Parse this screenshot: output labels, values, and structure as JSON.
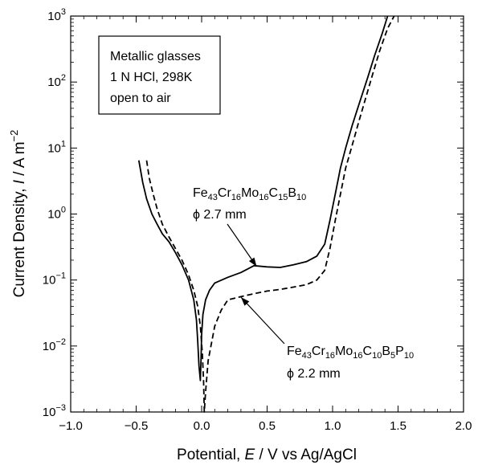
{
  "chart_data": {
    "type": "line",
    "xlabel": {
      "prefix": "Potential, ",
      "var": "E",
      "suffix": " / V vs Ag/AgCl"
    },
    "ylabel": {
      "prefix": "Current Density, ",
      "var": "I",
      "unit": " / A m",
      "exp": "−2"
    },
    "xlim": [
      -1.0,
      2.0
    ],
    "ylim_log10": [
      -3,
      3
    ],
    "y_scale": "log",
    "x_ticks": [
      {
        "value": -1.0,
        "label": "−1.0"
      },
      {
        "value": -0.5,
        "label": "−0.5"
      },
      {
        "value": 0.0,
        "label": "0.0"
      },
      {
        "value": 0.5,
        "label": "0.5"
      },
      {
        "value": 1.0,
        "label": "1.0"
      },
      {
        "value": 1.5,
        "label": "1.5"
      },
      {
        "value": 2.0,
        "label": "2.0"
      }
    ],
    "y_ticks": [
      {
        "exp": -3,
        "base": "10",
        "sup": "−3"
      },
      {
        "exp": -2,
        "base": "10",
        "sup": "−2"
      },
      {
        "exp": -1,
        "base": "10",
        "sup": "−1"
      },
      {
        "exp": 0,
        "base": "10",
        "sup": "0"
      },
      {
        "exp": 1,
        "base": "10",
        "sup": "1"
      },
      {
        "exp": 2,
        "base": "10",
        "sup": "2"
      },
      {
        "exp": 3,
        "base": "10",
        "sup": "3"
      }
    ],
    "legend_box": {
      "lines": [
        "Metallic glasses",
        "1 N HCl, 298K",
        "open to air"
      ]
    },
    "annotations": [
      {
        "id": "solid",
        "composition": [
          {
            "t": "Fe",
            "s": "43"
          },
          {
            "t": "Cr",
            "s": "16"
          },
          {
            "t": "Mo",
            "s": "16"
          },
          {
            "t": "C",
            "s": "15"
          },
          {
            "t": "B",
            "s": "10"
          }
        ],
        "size": "ϕ 2.7 mm",
        "arrow_to": {
          "x": 0.42,
          "y": 0.16
        }
      },
      {
        "id": "dashed",
        "composition": [
          {
            "t": "Fe",
            "s": "43"
          },
          {
            "t": "Cr",
            "s": "16"
          },
          {
            "t": "Mo",
            "s": "16"
          },
          {
            "t": "C",
            "s": "10"
          },
          {
            "t": "B",
            "s": "5"
          },
          {
            "t": "P",
            "s": "10"
          }
        ],
        "size": "ϕ 2.2 mm",
        "arrow_to": {
          "x": 0.3,
          "y": 0.055
        }
      }
    ],
    "series": [
      {
        "id": "solid",
        "style": "solid",
        "points": [
          [
            -0.48,
            6.5
          ],
          [
            -0.45,
            3.0
          ],
          [
            -0.42,
            1.7
          ],
          [
            -0.38,
            1.0
          ],
          [
            -0.34,
            0.7
          ],
          [
            -0.3,
            0.5
          ],
          [
            -0.25,
            0.38
          ],
          [
            -0.2,
            0.26
          ],
          [
            -0.15,
            0.17
          ],
          [
            -0.1,
            0.1
          ],
          [
            -0.06,
            0.05
          ],
          [
            -0.04,
            0.025
          ],
          [
            -0.03,
            0.012
          ],
          [
            -0.02,
            0.005
          ],
          [
            -0.01,
            0.003
          ],
          [
            -0.005,
            0.006
          ],
          [
            0.0,
            0.015
          ],
          [
            0.01,
            0.03
          ],
          [
            0.03,
            0.05
          ],
          [
            0.06,
            0.07
          ],
          [
            0.1,
            0.09
          ],
          [
            0.2,
            0.11
          ],
          [
            0.3,
            0.13
          ],
          [
            0.4,
            0.165
          ],
          [
            0.5,
            0.158
          ],
          [
            0.6,
            0.155
          ],
          [
            0.7,
            0.17
          ],
          [
            0.8,
            0.19
          ],
          [
            0.88,
            0.23
          ],
          [
            0.94,
            0.35
          ],
          [
            0.98,
            0.8
          ],
          [
            1.02,
            2.0
          ],
          [
            1.06,
            5.0
          ],
          [
            1.1,
            10.0
          ],
          [
            1.15,
            22.0
          ],
          [
            1.2,
            45.0
          ],
          [
            1.27,
            120.0
          ],
          [
            1.32,
            250.0
          ],
          [
            1.38,
            550.0
          ],
          [
            1.42,
            1000.0
          ]
        ]
      },
      {
        "id": "dashed",
        "style": "dashed",
        "points": [
          [
            -0.42,
            6.5
          ],
          [
            -0.4,
            3.5
          ],
          [
            -0.37,
            2.0
          ],
          [
            -0.34,
            1.2
          ],
          [
            -0.3,
            0.7
          ],
          [
            -0.25,
            0.45
          ],
          [
            -0.2,
            0.3
          ],
          [
            -0.15,
            0.2
          ],
          [
            -0.1,
            0.12
          ],
          [
            -0.06,
            0.07
          ],
          [
            -0.03,
            0.04
          ],
          [
            -0.01,
            0.02
          ],
          [
            0.005,
            0.008
          ],
          [
            0.015,
            0.003
          ],
          [
            0.02,
            0.001
          ],
          [
            0.03,
            0.002
          ],
          [
            0.05,
            0.006
          ],
          [
            0.1,
            0.02
          ],
          [
            0.15,
            0.035
          ],
          [
            0.2,
            0.05
          ],
          [
            0.3,
            0.056
          ],
          [
            0.4,
            0.062
          ],
          [
            0.5,
            0.068
          ],
          [
            0.6,
            0.072
          ],
          [
            0.7,
            0.078
          ],
          [
            0.8,
            0.085
          ],
          [
            0.88,
            0.1
          ],
          [
            0.94,
            0.14
          ],
          [
            0.98,
            0.3
          ],
          [
            1.02,
            0.8
          ],
          [
            1.06,
            2.0
          ],
          [
            1.1,
            5.0
          ],
          [
            1.15,
            11.0
          ],
          [
            1.2,
            25.0
          ],
          [
            1.25,
            55.0
          ],
          [
            1.3,
            120.0
          ],
          [
            1.36,
            300.0
          ],
          [
            1.42,
            650.0
          ],
          [
            1.47,
            1000.0
          ]
        ]
      }
    ]
  }
}
